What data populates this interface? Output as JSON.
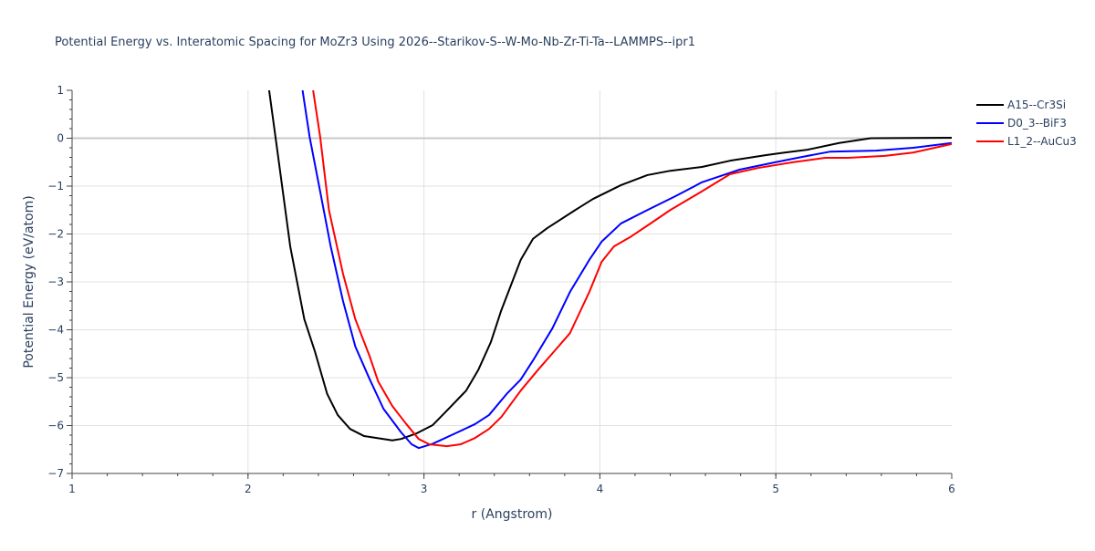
{
  "chart_data": {
    "type": "line",
    "title": "Potential Energy vs. Interatomic Spacing for MoZr3 Using 2026--Starikov-S--W-Mo-Nb-Zr-Ti-Ta--LAMMPS--ipr1",
    "xlabel": "r (Angstrom)",
    "ylabel": "Potential Energy (eV/atom)",
    "xlim": [
      1,
      6
    ],
    "ylim": [
      -7,
      1
    ],
    "xticks": [
      "1",
      "2",
      "3",
      "4",
      "5",
      "6"
    ],
    "yticks": [
      "1",
      "0",
      "−1",
      "−2",
      "−3",
      "−4",
      "−5",
      "−6",
      "−7"
    ],
    "grid": true,
    "legend": "top-right",
    "series": [
      {
        "name": "A15--Cr3Si",
        "color": "#000000",
        "x": [
          2.12,
          2.17,
          2.24,
          2.32,
          2.38,
          2.45,
          2.51,
          2.58,
          2.66,
          2.77,
          2.82,
          2.87,
          2.96,
          3.05,
          3.13,
          3.24,
          3.31,
          3.38,
          3.44,
          3.55,
          3.62,
          3.7,
          3.86,
          3.96,
          4.12,
          4.27,
          4.4,
          4.58,
          4.74,
          4.95,
          5.05,
          5.18,
          5.36,
          5.54,
          6.0
        ],
        "y": [
          1,
          -0.35,
          -2.26,
          -3.78,
          -4.45,
          -5.34,
          -5.78,
          -6.07,
          -6.22,
          -6.28,
          -6.31,
          -6.28,
          -6.16,
          -5.99,
          -5.69,
          -5.27,
          -4.83,
          -4.26,
          -3.59,
          -2.54,
          -2.1,
          -1.88,
          -1.5,
          -1.27,
          -0.98,
          -0.77,
          -0.68,
          -0.6,
          -0.47,
          -0.35,
          -0.3,
          -0.24,
          -0.1,
          0,
          0.01
        ]
      },
      {
        "name": "D0_3--BiF3",
        "color": "#0000ff",
        "x": [
          2.31,
          2.35,
          2.41,
          2.47,
          2.54,
          2.61,
          2.69,
          2.77,
          2.87,
          2.93,
          2.97,
          3.05,
          3.18,
          3.29,
          3.37,
          3.47,
          3.55,
          3.62,
          3.73,
          3.83,
          3.94,
          4.01,
          4.12,
          4.27,
          4.43,
          4.58,
          4.79,
          5.0,
          5.15,
          5.31,
          5.57,
          5.78,
          6.0
        ],
        "y": [
          1,
          0.03,
          -1.11,
          -2.26,
          -3.4,
          -4.35,
          -5.02,
          -5.65,
          -6.14,
          -6.39,
          -6.47,
          -6.38,
          -6.16,
          -5.97,
          -5.78,
          -5.34,
          -5.04,
          -4.64,
          -3.97,
          -3.21,
          -2.54,
          -2.16,
          -1.78,
          -1.5,
          -1.21,
          -0.92,
          -0.66,
          -0.5,
          -0.39,
          -0.28,
          -0.26,
          -0.2,
          -0.1
        ]
      },
      {
        "name": "L1_2--AuCu3",
        "color": "#ff0000",
        "x": [
          2.37,
          2.41,
          2.46,
          2.54,
          2.61,
          2.69,
          2.74,
          2.82,
          2.9,
          2.97,
          3.03,
          3.13,
          3.21,
          3.29,
          3.37,
          3.44,
          3.55,
          3.65,
          3.75,
          3.83,
          3.94,
          4.01,
          4.08,
          4.17,
          4.28,
          4.4,
          4.58,
          4.74,
          4.9,
          5.1,
          5.28,
          5.41,
          5.62,
          5.78,
          6.0
        ],
        "y": [
          1,
          0.03,
          -1.5,
          -2.83,
          -3.78,
          -4.54,
          -5.08,
          -5.59,
          -5.97,
          -6.28,
          -6.39,
          -6.43,
          -6.39,
          -6.26,
          -6.07,
          -5.82,
          -5.27,
          -4.83,
          -4.41,
          -4.07,
          -3.21,
          -2.58,
          -2.26,
          -2.07,
          -1.8,
          -1.5,
          -1.11,
          -0.75,
          -0.62,
          -0.5,
          -0.41,
          -0.41,
          -0.37,
          -0.3,
          -0.12
        ]
      }
    ]
  }
}
